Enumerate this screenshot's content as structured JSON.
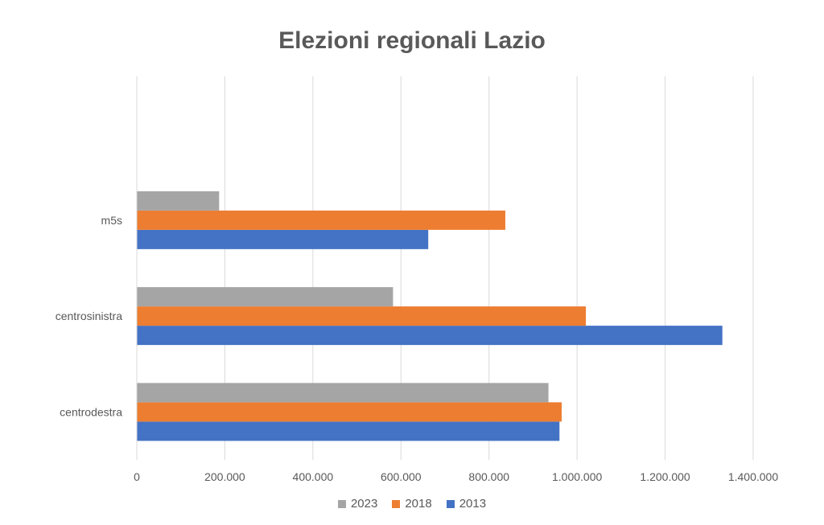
{
  "chart_data": {
    "type": "bar",
    "orientation": "horizontal",
    "title": "Elezioni regionali Lazio",
    "categories": [
      "centrodestra",
      "centrosinistra",
      "m5s"
    ],
    "series": [
      {
        "name": "2013",
        "color": "#4472C4",
        "values": [
          960000,
          1330000,
          662000
        ]
      },
      {
        "name": "2018",
        "color": "#ED7D31",
        "values": [
          965000,
          1020000,
          837000
        ]
      },
      {
        "name": "2023",
        "color": "#A5A5A5",
        "values": [
          935000,
          582000,
          187000
        ]
      }
    ],
    "legend_order": [
      "2023",
      "2018",
      "2013"
    ],
    "xlim": [
      0,
      1400000
    ],
    "x_ticks": [
      "0",
      "200.000",
      "400.000",
      "600.000",
      "800.000",
      "1.000.000",
      "1.200.000",
      "1.400.000"
    ],
    "grid": true,
    "legend_position": "bottom"
  }
}
